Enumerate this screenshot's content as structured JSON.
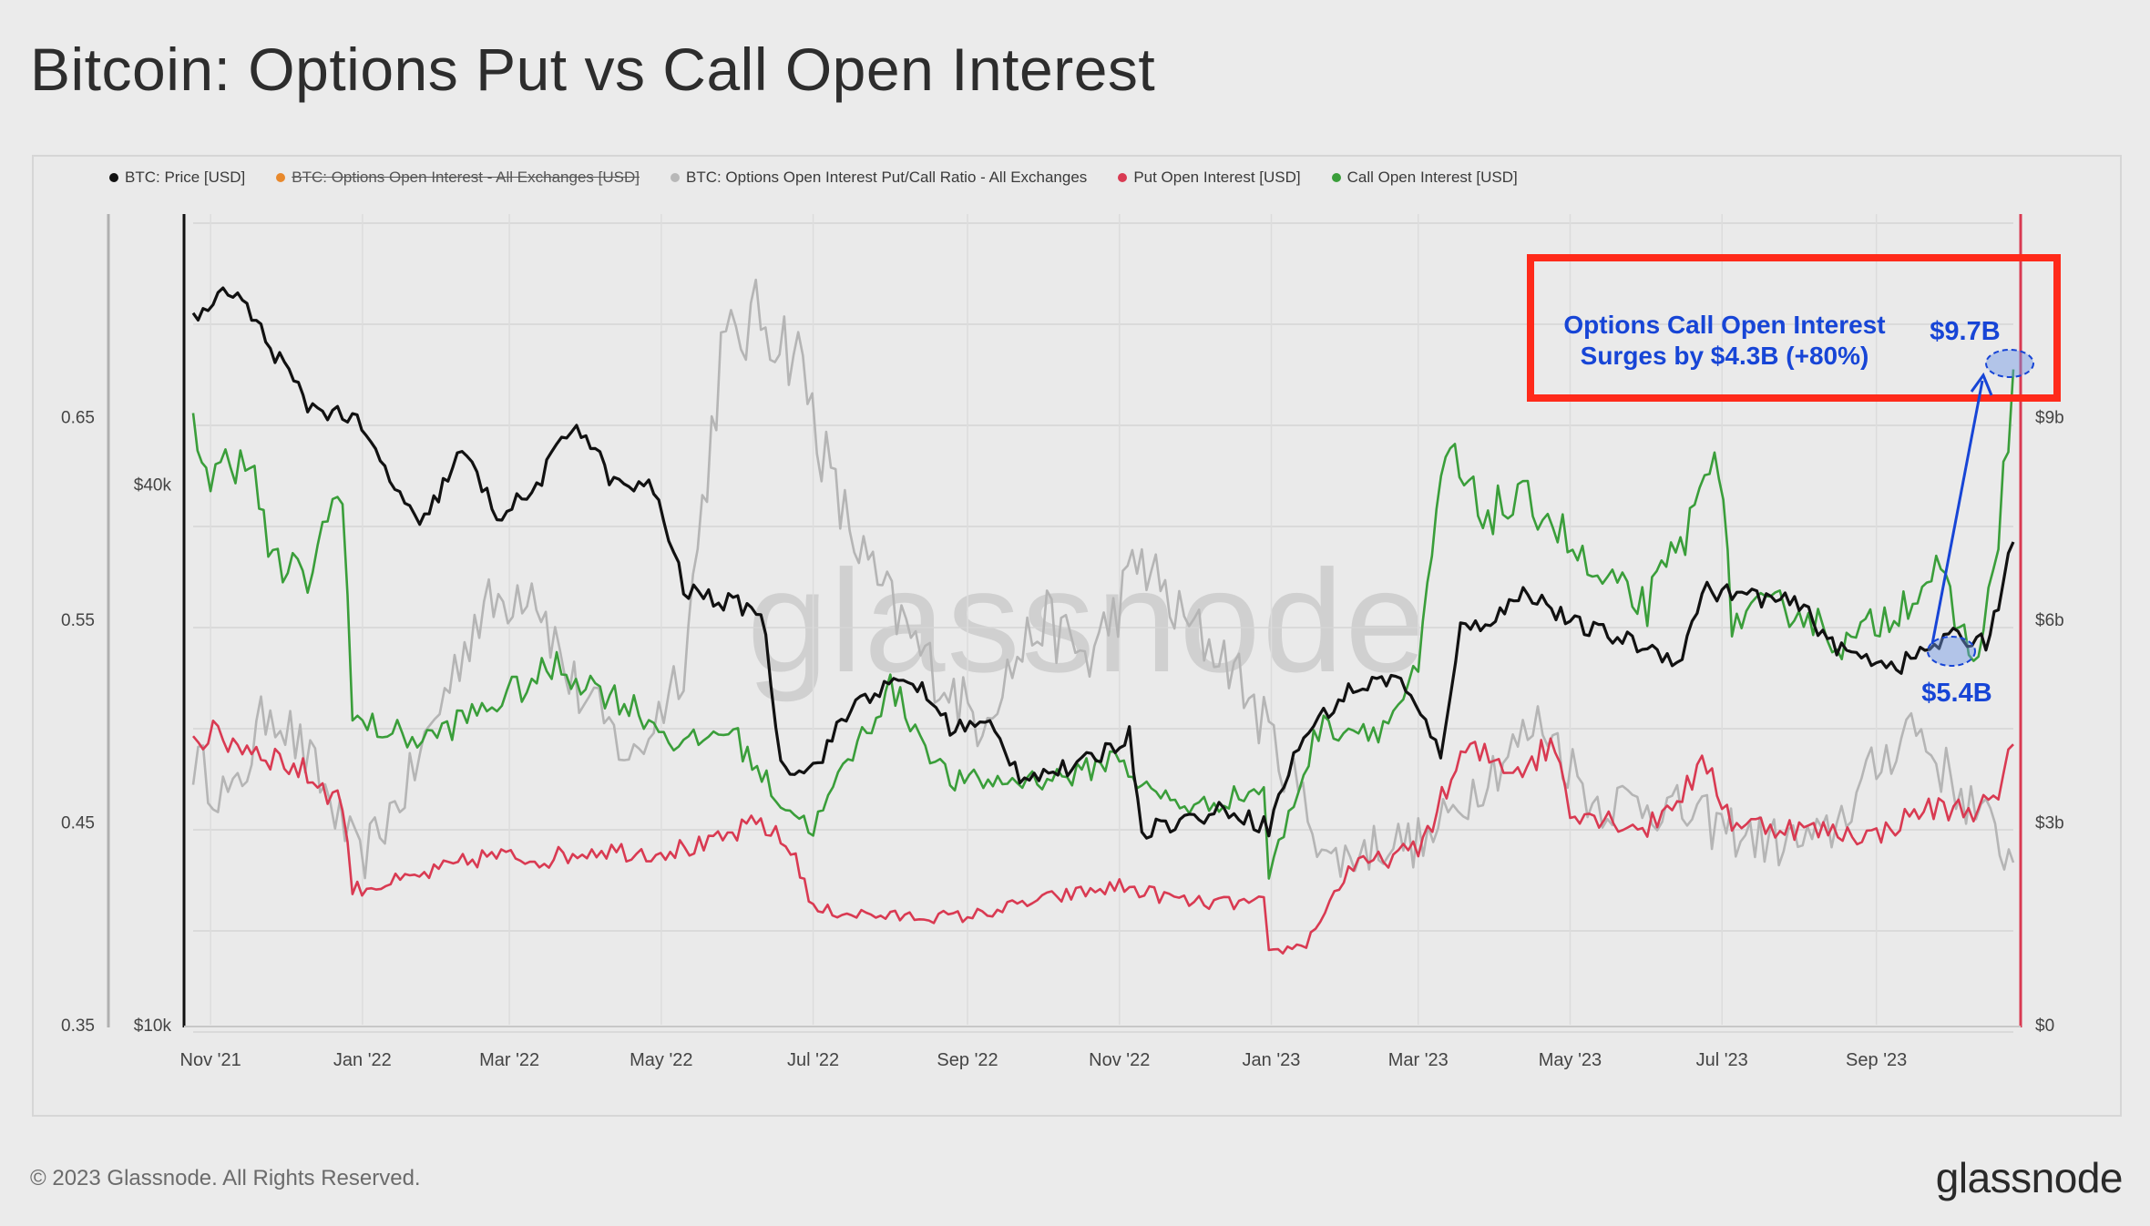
{
  "page": {
    "title": "Bitcoin: Options Put vs Call Open Interest",
    "copyright": "© 2023 Glassnode. All Rights Reserved.",
    "brand": "glassnode",
    "watermark": "glassnode"
  },
  "legend": [
    {
      "label": "BTC: Price [USD]",
      "color": "#111111",
      "struck": false
    },
    {
      "label": "BTC: Options Open Interest - All Exchanges [USD]",
      "color": "#e8892c",
      "struck": true
    },
    {
      "label": "BTC: Options Open Interest Put/Call Ratio - All Exchanges",
      "color": "#b8b8b8",
      "struck": false
    },
    {
      "label": "Put Open Interest [USD]",
      "color": "#d93a52",
      "struck": false
    },
    {
      "label": "Call Open Interest [USD]",
      "color": "#3a9e3a",
      "struck": false
    }
  ],
  "annotations": {
    "box_text_line1": "Options Call Open Interest",
    "box_text_line2": "Surges by $4.3B (+80%)",
    "high_label": "$9.7B",
    "low_label": "$5.4B",
    "box_color": "#ff2a1a",
    "text_color": "#1745d6"
  },
  "chart_data": {
    "type": "line",
    "title": "Bitcoin: Options Put vs Call Open Interest",
    "x_range": [
      "2021-10-25",
      "2023-10-26"
    ],
    "x_ticks": [
      {
        "date": "2021-11-01",
        "label": "Nov '21"
      },
      {
        "date": "2022-01-01",
        "label": "Jan '22"
      },
      {
        "date": "2022-03-01",
        "label": "Mar '22"
      },
      {
        "date": "2022-05-01",
        "label": "May '22"
      },
      {
        "date": "2022-07-01",
        "label": "Jul '22"
      },
      {
        "date": "2022-09-01",
        "label": "Sep '22"
      },
      {
        "date": "2022-11-01",
        "label": "Nov '22"
      },
      {
        "date": "2023-01-01",
        "label": "Jan '23"
      },
      {
        "date": "2023-03-01",
        "label": "Mar '23"
      },
      {
        "date": "2023-05-01",
        "label": "May '23"
      },
      {
        "date": "2023-07-01",
        "label": "Jul '23"
      },
      {
        "date": "2023-09-01",
        "label": "Sep '23"
      }
    ],
    "axes": {
      "ratio": {
        "side": "left-outer",
        "range": [
          0.35,
          0.75
        ],
        "ticks": [
          0.35,
          0.45,
          0.55,
          0.65
        ],
        "tick_labels": [
          "0.35",
          "0.45",
          "0.55",
          "0.65"
        ]
      },
      "price": {
        "side": "left-inner",
        "scale": "log",
        "range": [
          10000,
          80000
        ],
        "ticks": [
          10000,
          40000
        ],
        "tick_labels": [
          "$10k",
          "$40k"
        ]
      },
      "oi": {
        "side": "right",
        "range": [
          0,
          12000000000
        ],
        "ticks": [
          0,
          3000000000,
          6000000000,
          9000000000
        ],
        "tick_labels": [
          "$0",
          "$3b",
          "$6b",
          "$9b"
        ]
      }
    },
    "grid": true,
    "legend_position": "top-left",
    "series": [
      {
        "name": "BTC: Price [USD]",
        "axis": "price",
        "color": "#111111",
        "noise": 0.025,
        "points": [
          [
            "2021-10-25",
            61000
          ],
          [
            "2021-11-10",
            66000
          ],
          [
            "2021-11-25",
            57000
          ],
          [
            "2021-12-10",
            49000
          ],
          [
            "2021-12-28",
            47500
          ],
          [
            "2022-01-10",
            41500
          ],
          [
            "2022-01-24",
            35500
          ],
          [
            "2022-02-10",
            43500
          ],
          [
            "2022-02-24",
            37000
          ],
          [
            "2022-03-10",
            39000
          ],
          [
            "2022-03-28",
            47000
          ],
          [
            "2022-04-12",
            40000
          ],
          [
            "2022-04-28",
            39500
          ],
          [
            "2022-05-10",
            30500
          ],
          [
            "2022-05-28",
            29500
          ],
          [
            "2022-06-10",
            29000
          ],
          [
            "2022-06-18",
            19500
          ],
          [
            "2022-07-01",
            19300
          ],
          [
            "2022-07-20",
            23200
          ],
          [
            "2022-08-10",
            24200
          ],
          [
            "2022-08-25",
            21500
          ],
          [
            "2022-09-10",
            21500
          ],
          [
            "2022-09-22",
            19000
          ],
          [
            "2022-10-15",
            19300
          ],
          [
            "2022-11-05",
            21000
          ],
          [
            "2022-11-10",
            16500
          ],
          [
            "2022-12-01",
            17000
          ],
          [
            "2022-12-15",
            17400
          ],
          [
            "2022-12-31",
            16600
          ],
          [
            "2023-01-14",
            21000
          ],
          [
            "2023-02-01",
            23500
          ],
          [
            "2023-02-20",
            24500
          ],
          [
            "2023-03-10",
            20000
          ],
          [
            "2023-03-18",
            27500
          ],
          [
            "2023-04-01",
            28500
          ],
          [
            "2023-04-14",
            30500
          ],
          [
            "2023-05-01",
            28000
          ],
          [
            "2023-05-20",
            27000
          ],
          [
            "2023-06-15",
            25500
          ],
          [
            "2023-06-23",
            30500
          ],
          [
            "2023-07-15",
            30000
          ],
          [
            "2023-08-01",
            29300
          ],
          [
            "2023-08-18",
            26000
          ],
          [
            "2023-09-11",
            25200
          ],
          [
            "2023-09-30",
            27000
          ],
          [
            "2023-10-15",
            26800
          ],
          [
            "2023-10-20",
            29500
          ],
          [
            "2023-10-26",
            34500
          ]
        ]
      },
      {
        "name": "BTC: Options Open Interest Put/Call Ratio - All Exchanges",
        "axis": "ratio",
        "color": "#b5b5b5",
        "noise": 0.03,
        "points": [
          [
            "2021-10-25",
            0.48
          ],
          [
            "2021-11-10",
            0.46
          ],
          [
            "2021-11-25",
            0.51
          ],
          [
            "2021-12-15",
            0.47
          ],
          [
            "2021-12-31",
            0.43
          ],
          [
            "2022-01-20",
            0.47
          ],
          [
            "2022-02-15",
            0.55
          ],
          [
            "2022-03-10",
            0.57
          ],
          [
            "2022-03-25",
            0.52
          ],
          [
            "2022-04-20",
            0.48
          ],
          [
            "2022-05-10",
            0.53
          ],
          [
            "2022-05-25",
            0.68
          ],
          [
            "2022-06-10",
            0.7
          ],
          [
            "2022-06-25",
            0.68
          ],
          [
            "2022-07-10",
            0.61
          ],
          [
            "2022-07-25",
            0.57
          ],
          [
            "2022-08-15",
            0.53
          ],
          [
            "2022-09-05",
            0.5
          ],
          [
            "2022-10-01",
            0.55
          ],
          [
            "2022-10-20",
            0.53
          ],
          [
            "2022-11-10",
            0.58
          ],
          [
            "2022-11-25",
            0.55
          ],
          [
            "2022-12-15",
            0.53
          ],
          [
            "2023-01-10",
            0.47
          ],
          [
            "2023-01-25",
            0.43
          ],
          [
            "2023-02-15",
            0.44
          ],
          [
            "2023-03-05",
            0.44
          ],
          [
            "2023-03-25",
            0.47
          ],
          [
            "2023-04-20",
            0.5
          ],
          [
            "2023-05-10",
            0.46
          ],
          [
            "2023-06-01",
            0.46
          ],
          [
            "2023-06-25",
            0.45
          ],
          [
            "2023-07-20",
            0.44
          ],
          [
            "2023-08-10",
            0.44
          ],
          [
            "2023-08-28",
            0.47
          ],
          [
            "2023-09-15",
            0.5
          ],
          [
            "2023-10-01",
            0.47
          ],
          [
            "2023-10-15",
            0.45
          ],
          [
            "2023-10-26",
            0.43
          ]
        ]
      },
      {
        "name": "Put Open Interest [USD]",
        "axis": "oi",
        "color": "#d93a52",
        "noise": 0.06,
        "points": [
          [
            "2021-10-25",
            4300000000
          ],
          [
            "2021-11-10",
            4200000000
          ],
          [
            "2021-11-25",
            4000000000
          ],
          [
            "2021-12-10",
            3700000000
          ],
          [
            "2021-12-24",
            3300000000
          ],
          [
            "2021-12-28",
            2000000000
          ],
          [
            "2022-01-20",
            2150000000
          ],
          [
            "2022-02-20",
            2500000000
          ],
          [
            "2022-03-15",
            2450000000
          ],
          [
            "2022-04-05",
            2600000000
          ],
          [
            "2022-04-25",
            2550000000
          ],
          [
            "2022-05-20",
            2650000000
          ],
          [
            "2022-06-10",
            3000000000
          ],
          [
            "2022-06-24",
            2500000000
          ],
          [
            "2022-07-01",
            1700000000
          ],
          [
            "2022-08-01",
            1600000000
          ],
          [
            "2022-09-01",
            1600000000
          ],
          [
            "2022-10-01",
            1850000000
          ],
          [
            "2022-11-01",
            2050000000
          ],
          [
            "2022-12-01",
            1800000000
          ],
          [
            "2022-12-29",
            1800000000
          ],
          [
            "2022-12-31",
            1050000000
          ],
          [
            "2023-01-15",
            1200000000
          ],
          [
            "2023-02-01",
            2300000000
          ],
          [
            "2023-03-01",
            2600000000
          ],
          [
            "2023-03-20",
            4050000000
          ],
          [
            "2023-04-10",
            3800000000
          ],
          [
            "2023-04-25",
            4150000000
          ],
          [
            "2023-05-01",
            3200000000
          ],
          [
            "2023-06-01",
            2900000000
          ],
          [
            "2023-06-25",
            3850000000
          ],
          [
            "2023-07-05",
            3000000000
          ],
          [
            "2023-08-01",
            2900000000
          ],
          [
            "2023-09-01",
            2800000000
          ],
          [
            "2023-09-20",
            3200000000
          ],
          [
            "2023-10-10",
            3200000000
          ],
          [
            "2023-10-20",
            3300000000
          ],
          [
            "2023-10-26",
            4150000000
          ]
        ]
      },
      {
        "name": "Call Open Interest [USD]",
        "axis": "oi",
        "color": "#3a9e3a",
        "noise": 0.05,
        "points": [
          [
            "2021-10-25",
            9100000000
          ],
          [
            "2021-11-01",
            8000000000
          ],
          [
            "2021-11-15",
            8600000000
          ],
          [
            "2021-11-26",
            6800000000
          ],
          [
            "2021-12-10",
            6600000000
          ],
          [
            "2021-12-24",
            8100000000
          ],
          [
            "2021-12-28",
            4500000000
          ],
          [
            "2022-01-25",
            4200000000
          ],
          [
            "2022-02-20",
            4700000000
          ],
          [
            "2022-03-20",
            5300000000
          ],
          [
            "2022-04-20",
            4700000000
          ],
          [
            "2022-05-10",
            4100000000
          ],
          [
            "2022-05-28",
            4400000000
          ],
          [
            "2022-06-18",
            3300000000
          ],
          [
            "2022-07-01",
            2900000000
          ],
          [
            "2022-07-15",
            3900000000
          ],
          [
            "2022-08-01",
            5000000000
          ],
          [
            "2022-08-25",
            3600000000
          ],
          [
            "2022-09-15",
            3600000000
          ],
          [
            "2022-10-15",
            3700000000
          ],
          [
            "2022-11-01",
            4000000000
          ],
          [
            "2022-11-10",
            3500000000
          ],
          [
            "2022-12-01",
            3200000000
          ],
          [
            "2022-12-29",
            3500000000
          ],
          [
            "2022-12-31",
            2200000000
          ],
          [
            "2023-01-20",
            4400000000
          ],
          [
            "2023-02-15",
            4400000000
          ],
          [
            "2023-03-01",
            5200000000
          ],
          [
            "2023-03-12",
            8500000000
          ],
          [
            "2023-03-25",
            7600000000
          ],
          [
            "2023-04-20",
            7700000000
          ],
          [
            "2023-05-10",
            6600000000
          ],
          [
            "2023-06-01",
            6200000000
          ],
          [
            "2023-06-20",
            7500000000
          ],
          [
            "2023-06-28",
            8900000000
          ],
          [
            "2023-07-05",
            6000000000
          ],
          [
            "2023-07-30",
            6200000000
          ],
          [
            "2023-08-20",
            5600000000
          ],
          [
            "2023-09-10",
            6200000000
          ],
          [
            "2023-09-25",
            6700000000
          ],
          [
            "2023-10-10",
            5400000000
          ],
          [
            "2023-10-18",
            6500000000
          ],
          [
            "2023-10-26",
            9700000000
          ]
        ]
      }
    ]
  }
}
